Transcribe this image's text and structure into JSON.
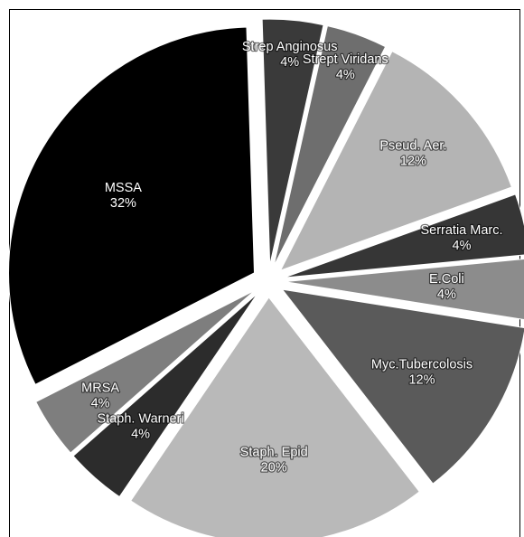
{
  "chart_data": {
    "type": "pie",
    "title": "",
    "legend": "none",
    "slices": [
      {
        "label": "MSSA",
        "value": 32,
        "value_label": "32%",
        "color": "#000000"
      },
      {
        "label": "Strep Anginosus",
        "value": 4,
        "value_label": "4%",
        "color": "#3a3a3a"
      },
      {
        "label": "Strept Viridans",
        "value": 4,
        "value_label": "4%",
        "color": "#6e6e6e"
      },
      {
        "label": "Pseud. Aer.",
        "value": 12,
        "value_label": "12%",
        "color": "#b4b4b4"
      },
      {
        "label": "Serratia Marc.",
        "value": 4,
        "value_label": "4%",
        "color": "#363636"
      },
      {
        "label": "E.Coli",
        "value": 4,
        "value_label": "4%",
        "color": "#8c8c8c"
      },
      {
        "label": "Myc.Tubercolosis",
        "value": 12,
        "value_label": "12%",
        "color": "#5a5a5a"
      },
      {
        "label": "Staph. Epid",
        "value": 20,
        "value_label": "20%",
        "color": "#b9b9b9"
      },
      {
        "label": "Staph. Warneri",
        "value": 4,
        "value_label": "4%",
        "color": "#2c2c2c"
      },
      {
        "label": "MRSA",
        "value": 4,
        "value_label": "4%",
        "color": "#7e7e7e"
      }
    ]
  }
}
